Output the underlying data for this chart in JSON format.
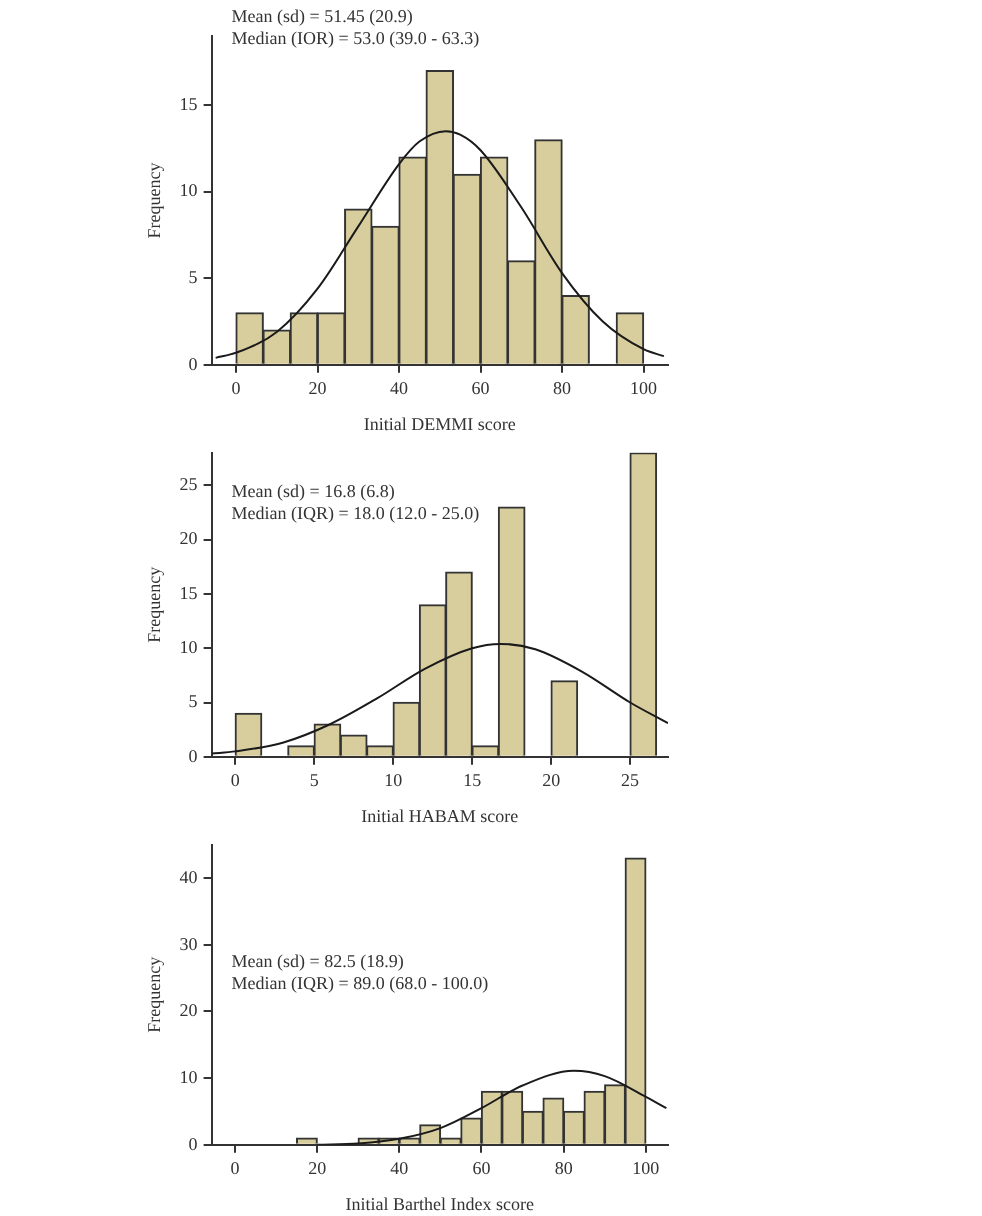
{
  "chart_data": [
    {
      "type": "histogram",
      "xlabel": "Initial DEMMI score",
      "ylabel": "Frequency",
      "annotations": [
        "Mean (sd) = 51.45 (20.9)",
        "Median (IOR) = 53.0 (39.0 - 63.3)"
      ],
      "xlim": [
        -6,
        106
      ],
      "xticks": [
        0,
        20,
        40,
        60,
        80,
        100
      ],
      "ylim": [
        0,
        19
      ],
      "yticks": [
        0,
        5,
        10,
        15
      ],
      "grid": false,
      "legend": false,
      "series": [
        {
          "type": "histogram",
          "color": "#d8cd9d",
          "bins": [
            0,
            6.67,
            13.33,
            20,
            26.67,
            33.33,
            40,
            46.67,
            53.33,
            60,
            66.67,
            73.33,
            80,
            86.67,
            93.33,
            100
          ],
          "values": [
            3,
            2,
            3,
            3,
            9,
            8,
            12,
            17,
            11,
            12,
            6,
            13,
            4,
            0,
            3
          ]
        },
        {
          "type": "line",
          "color": "#1a1a1a",
          "x": [
            -5,
            0,
            10,
            20,
            30,
            40,
            45,
            51.45,
            55,
            60,
            70,
            80,
            90,
            100,
            105
          ],
          "values": [
            0.4,
            0.7,
            1.9,
            4.4,
            8,
            11.6,
            12.9,
            13.5,
            13.3,
            12.4,
            9.1,
            5.3,
            2.5,
            0.9,
            0.5
          ]
        }
      ]
    },
    {
      "type": "histogram",
      "xlabel": "Initial HABAM score",
      "ylabel": "Frequency",
      "annotations": [
        "Mean (sd) = 16.8 (6.8)",
        "Median (IQR) = 18.0 (12.0 - 25.0)"
      ],
      "xlim": [
        -1.5,
        27.4
      ],
      "xticks": [
        0,
        5,
        10,
        15,
        20,
        25
      ],
      "ylim": [
        0,
        28
      ],
      "yticks": [
        0,
        5,
        10,
        15,
        20,
        25
      ],
      "grid": false,
      "legend": false,
      "series": [
        {
          "type": "histogram",
          "color": "#d8cd9d",
          "bins": [
            0,
            1.67,
            3.33,
            5,
            6.67,
            8.33,
            10,
            11.67,
            13.33,
            15,
            16.67,
            18.33,
            20,
            21.67,
            23.33,
            25,
            26.67
          ],
          "values": [
            4,
            0,
            1,
            3,
            2,
            1,
            5,
            14,
            17,
            1,
            23,
            0,
            7,
            0,
            0,
            28
          ]
        },
        {
          "type": "line",
          "color": "#1a1a1a",
          "x": [
            -1.5,
            0,
            3,
            6,
            9,
            12,
            15,
            16.8,
            19,
            22,
            25,
            27.4
          ],
          "values": [
            0.3,
            0.5,
            1.3,
            3,
            5.4,
            8.1,
            10,
            10.4,
            9.9,
            7.8,
            5,
            3.1
          ]
        }
      ]
    },
    {
      "type": "histogram",
      "xlabel": "Initial Barthel Index score",
      "ylabel": "Frequency",
      "annotations": [
        "Mean (sd) = 82.5 (18.9)",
        "Median (IQR) = 89.0 (68.0 - 100.0)"
      ],
      "xlim": [
        -5.7,
        105.4
      ],
      "xticks": [
        0,
        20,
        40,
        60,
        80,
        100
      ],
      "ylim": [
        0,
        45
      ],
      "yticks": [
        0,
        10,
        20,
        30,
        40
      ],
      "grid": false,
      "legend": false,
      "series": [
        {
          "type": "histogram",
          "color": "#d8cd9d",
          "bins": [
            15,
            20,
            25,
            30,
            35,
            40,
            45,
            50,
            55,
            60,
            65,
            70,
            75,
            80,
            85,
            90,
            95,
            100
          ],
          "values": [
            1,
            0,
            0,
            1,
            1,
            1,
            3,
            1,
            4,
            8,
            8,
            5,
            7,
            5,
            8,
            9,
            43
          ]
        },
        {
          "type": "line",
          "color": "#1a1a1a",
          "x": [
            20,
            30,
            40,
            50,
            60,
            70,
            82.5,
            90,
            100,
            105
          ],
          "values": [
            0,
            0.2,
            0.9,
            2.5,
            5.5,
            8.9,
            11.1,
            10.3,
            7.2,
            5.5
          ]
        }
      ]
    }
  ]
}
